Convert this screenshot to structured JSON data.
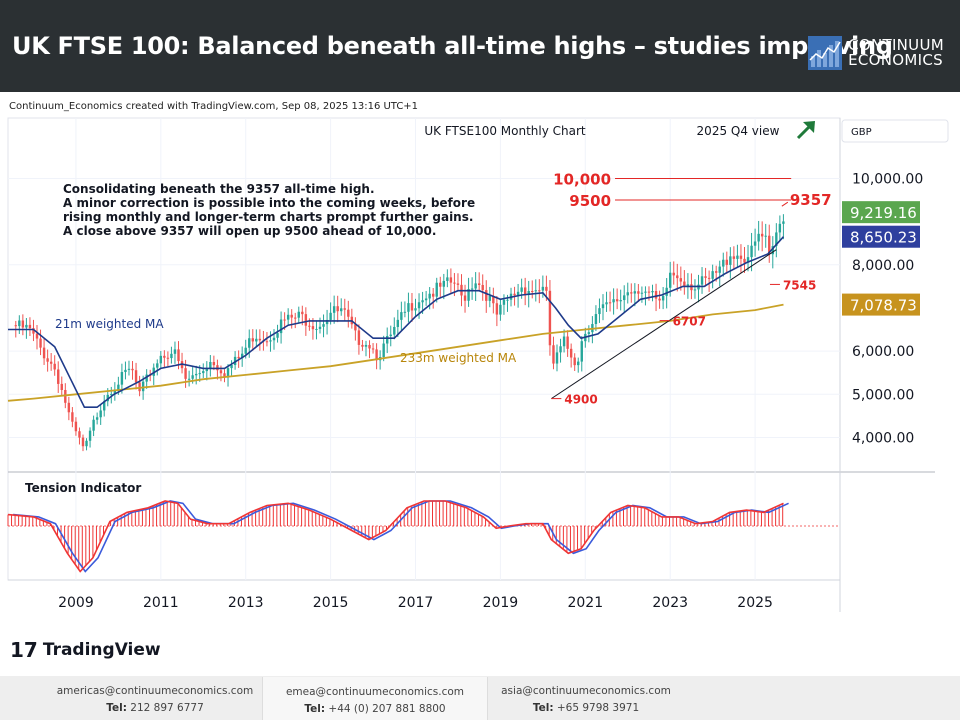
{
  "header": {
    "title": "UK FTSE 100: Balanced beneath all-time highs – studies improving",
    "brand_line1": "CONTINUUM",
    "brand_line2": "ECONOMICS"
  },
  "credit": "Continuum_Economics created with TradingView.com, Sep 08, 2025 13:16 UTC+1",
  "chart_data": {
    "type": "candlestick",
    "title": "UK FTSE100 Monthly Chart",
    "view_label": "2025 Q4 view",
    "currency": "GBP",
    "xlim": [
      2007.4,
      2027.0
    ],
    "ylim": [
      3200,
      11400
    ],
    "price_ticks": [
      4000,
      5000,
      6000,
      8000,
      10000
    ],
    "price_tick_labels": [
      "4,000.00",
      "5,000.00",
      "6,000.00",
      "8,000.00",
      "10,000.00"
    ],
    "year_ticks": [
      2009,
      2011,
      2013,
      2015,
      2017,
      2019,
      2021,
      2023,
      2025
    ],
    "price_path": [
      [
        2007.5,
        6600
      ],
      [
        2007.9,
        6500
      ],
      [
        2008.2,
        6000
      ],
      [
        2008.5,
        5600
      ],
      [
        2008.7,
        5000
      ],
      [
        2008.9,
        4300
      ],
      [
        2009.1,
        3900
      ],
      [
        2009.2,
        3700
      ],
      [
        2009.4,
        4300
      ],
      [
        2009.7,
        5000
      ],
      [
        2010.0,
        5300
      ],
      [
        2010.3,
        5600
      ],
      [
        2010.5,
        5000
      ],
      [
        2010.8,
        5600
      ],
      [
        2011.0,
        5900
      ],
      [
        2011.3,
        6000
      ],
      [
        2011.6,
        5300
      ],
      [
        2011.9,
        5500
      ],
      [
        2012.2,
        5800
      ],
      [
        2012.5,
        5500
      ],
      [
        2012.9,
        5900
      ],
      [
        2013.2,
        6400
      ],
      [
        2013.5,
        6300
      ],
      [
        2013.9,
        6700
      ],
      [
        2014.3,
        6800
      ],
      [
        2014.7,
        6600
      ],
      [
        2015.0,
        6900
      ],
      [
        2015.3,
        6900
      ],
      [
        2015.6,
        6300
      ],
      [
        2015.9,
        6200
      ],
      [
        2016.1,
        5900
      ],
      [
        2016.4,
        6300
      ],
      [
        2016.7,
        6800
      ],
      [
        2016.9,
        7100
      ],
      [
        2017.2,
        7300
      ],
      [
        2017.5,
        7400
      ],
      [
        2017.9,
        7600
      ],
      [
        2018.1,
        7200
      ],
      [
        2018.4,
        7700
      ],
      [
        2018.7,
        7300
      ],
      [
        2018.9,
        6800
      ],
      [
        2019.2,
        7200
      ],
      [
        2019.5,
        7500
      ],
      [
        2019.8,
        7400
      ],
      [
        2019.95,
        7500
      ],
      [
        2020.1,
        7200
      ],
      [
        2020.2,
        5600
      ],
      [
        2020.5,
        6200
      ],
      [
        2020.8,
        5700
      ],
      [
        2020.95,
        6400
      ],
      [
        2021.3,
        6900
      ],
      [
        2021.7,
        7100
      ],
      [
        2022.0,
        7400
      ],
      [
        2022.3,
        7500
      ],
      [
        2022.6,
        7200
      ],
      [
        2022.8,
        7000
      ],
      [
        2023.0,
        7800
      ],
      [
        2023.3,
        7700
      ],
      [
        2023.6,
        7500
      ],
      [
        2023.9,
        7600
      ],
      [
        2024.2,
        7900
      ],
      [
        2024.4,
        8300
      ],
      [
        2024.7,
        8200
      ],
      [
        2024.9,
        8200
      ],
      [
        2025.1,
        8700
      ],
      [
        2025.25,
        8500
      ],
      [
        2025.35,
        8000
      ],
      [
        2025.5,
        8700
      ],
      [
        2025.6,
        9000
      ],
      [
        2025.67,
        9219
      ]
    ],
    "ma_21": {
      "label": "21m weighted MA",
      "value_label": "8,650.23",
      "points": [
        [
          2007.4,
          6500
        ],
        [
          2008.0,
          6500
        ],
        [
          2008.5,
          6100
        ],
        [
          2008.9,
          5300
        ],
        [
          2009.2,
          4700
        ],
        [
          2009.5,
          4700
        ],
        [
          2009.9,
          5000
        ],
        [
          2010.5,
          5300
        ],
        [
          2011.0,
          5600
        ],
        [
          2011.5,
          5700
        ],
        [
          2012.0,
          5600
        ],
        [
          2012.5,
          5600
        ],
        [
          2013.0,
          5900
        ],
        [
          2013.5,
          6300
        ],
        [
          2014.0,
          6600
        ],
        [
          2014.5,
          6700
        ],
        [
          2015.0,
          6700
        ],
        [
          2015.5,
          6700
        ],
        [
          2016.0,
          6300
        ],
        [
          2016.5,
          6300
        ],
        [
          2017.0,
          6800
        ],
        [
          2017.5,
          7200
        ],
        [
          2018.0,
          7400
        ],
        [
          2018.5,
          7400
        ],
        [
          2019.0,
          7200
        ],
        [
          2019.5,
          7300
        ],
        [
          2020.0,
          7350
        ],
        [
          2020.3,
          7000
        ],
        [
          2020.6,
          6600
        ],
        [
          2020.9,
          6300
        ],
        [
          2021.3,
          6400
        ],
        [
          2021.8,
          6800
        ],
        [
          2022.3,
          7200
        ],
        [
          2022.8,
          7300
        ],
        [
          2023.3,
          7500
        ],
        [
          2023.8,
          7500
        ],
        [
          2024.3,
          7800
        ],
        [
          2024.8,
          8050
        ],
        [
          2025.3,
          8250
        ],
        [
          2025.67,
          8650
        ]
      ]
    },
    "ma_233": {
      "label": "233m weighted MA",
      "value_label": "7,078.73",
      "points": [
        [
          2007.4,
          4850
        ],
        [
          2008.0,
          4900
        ],
        [
          2009.0,
          5000
        ],
        [
          2010.0,
          5100
        ],
        [
          2011.0,
          5200
        ],
        [
          2012.0,
          5350
        ],
        [
          2013.0,
          5450
        ],
        [
          2014.0,
          5550
        ],
        [
          2015.0,
          5650
        ],
        [
          2016.0,
          5800
        ],
        [
          2017.0,
          5950
        ],
        [
          2018.0,
          6100
        ],
        [
          2019.0,
          6250
        ],
        [
          2020.0,
          6400
        ],
        [
          2021.0,
          6500
        ],
        [
          2022.0,
          6600
        ],
        [
          2023.0,
          6700
        ],
        [
          2024.0,
          6850
        ],
        [
          2025.0,
          6950
        ],
        [
          2025.67,
          7078
        ]
      ]
    },
    "last_price_label": "9,219.16",
    "trendline": [
      [
        2020.2,
        4900
      ],
      [
        2025.5,
        8350
      ]
    ],
    "levels": [
      {
        "label": "10,000",
        "value": 10000,
        "from": 2021.7,
        "to": 2025.85
      },
      {
        "label": "9500",
        "value": 9500,
        "from": 2021.7,
        "to": 2025.85
      }
    ],
    "pivots": [
      {
        "label": "9357",
        "value": 9357,
        "x": 2025.63
      },
      {
        "label": "7545",
        "value": 7545,
        "x": 2025.35
      },
      {
        "label": "6707",
        "value": 6707,
        "x": 2022.75
      },
      {
        "label": "4900",
        "value": 4900,
        "x": 2020.2
      }
    ],
    "commentary": [
      "Consolidating beneath the 9357 all-time high.",
      "A minor correction is possible into the coming weeks, before",
      "rising monthly and longer-term charts prompt further gains.",
      "A close above 9357 will open up 9500 ahead of 10,000."
    ],
    "indicator": {
      "label": "Tension Indicator",
      "ylim": [
        -1.1,
        1.1
      ],
      "points": [
        [
          2007.4,
          0.25
        ],
        [
          2008.0,
          0.2
        ],
        [
          2008.4,
          0.05
        ],
        [
          2008.8,
          -0.6
        ],
        [
          2009.1,
          -1.0
        ],
        [
          2009.4,
          -0.7
        ],
        [
          2009.8,
          0.1
        ],
        [
          2010.2,
          0.3
        ],
        [
          2010.7,
          0.4
        ],
        [
          2011.1,
          0.55
        ],
        [
          2011.4,
          0.5
        ],
        [
          2011.7,
          0.15
        ],
        [
          2012.1,
          0.05
        ],
        [
          2012.6,
          0.05
        ],
        [
          2013.1,
          0.3
        ],
        [
          2013.5,
          0.45
        ],
        [
          2014.0,
          0.5
        ],
        [
          2014.5,
          0.35
        ],
        [
          2015.0,
          0.15
        ],
        [
          2015.5,
          -0.1
        ],
        [
          2015.9,
          -0.3
        ],
        [
          2016.3,
          -0.1
        ],
        [
          2016.8,
          0.4
        ],
        [
          2017.2,
          0.55
        ],
        [
          2017.7,
          0.55
        ],
        [
          2018.2,
          0.4
        ],
        [
          2018.6,
          0.2
        ],
        [
          2018.9,
          -0.05
        ],
        [
          2019.2,
          0.0
        ],
        [
          2019.6,
          0.05
        ],
        [
          2020.0,
          0.05
        ],
        [
          2020.2,
          -0.3
        ],
        [
          2020.6,
          -0.6
        ],
        [
          2020.9,
          -0.5
        ],
        [
          2021.2,
          -0.1
        ],
        [
          2021.6,
          0.3
        ],
        [
          2022.0,
          0.45
        ],
        [
          2022.4,
          0.4
        ],
        [
          2022.8,
          0.2
        ],
        [
          2023.2,
          0.2
        ],
        [
          2023.6,
          0.05
        ],
        [
          2024.0,
          0.1
        ],
        [
          2024.4,
          0.3
        ],
        [
          2024.8,
          0.35
        ],
        [
          2025.2,
          0.3
        ],
        [
          2025.67,
          0.5
        ]
      ]
    }
  },
  "footer": {
    "contacts": [
      {
        "email": "americas@continuumeconomics.com",
        "tel_label": "Tel:",
        "tel": "212 897 6777"
      },
      {
        "email": "emea@continuumeconomics.com",
        "tel_label": "Tel:",
        "tel": "+44 (0) 207 881 8800"
      },
      {
        "email": "asia@continuumeconomics.com",
        "tel_label": "Tel:",
        "tel": "+65 9798 3971"
      }
    ]
  },
  "tradingview": {
    "mark": "17",
    "name": "TradingView"
  },
  "colors": {
    "header_bg": "#2b3033",
    "candle_up": "#26a69a",
    "candle_down": "#ef5350",
    "ma21": "#1e3a8a",
    "ma233": "#c9a227",
    "level": "#e32726",
    "indicator_red": "#ef3535",
    "indicator_blue": "#3b5bdb",
    "last_price_bg": "#5aa64f",
    "ma21_tag_bg": "#2e3f9e",
    "ma233_tag_bg": "#c7931e",
    "arrow": "#1f7a3a"
  }
}
